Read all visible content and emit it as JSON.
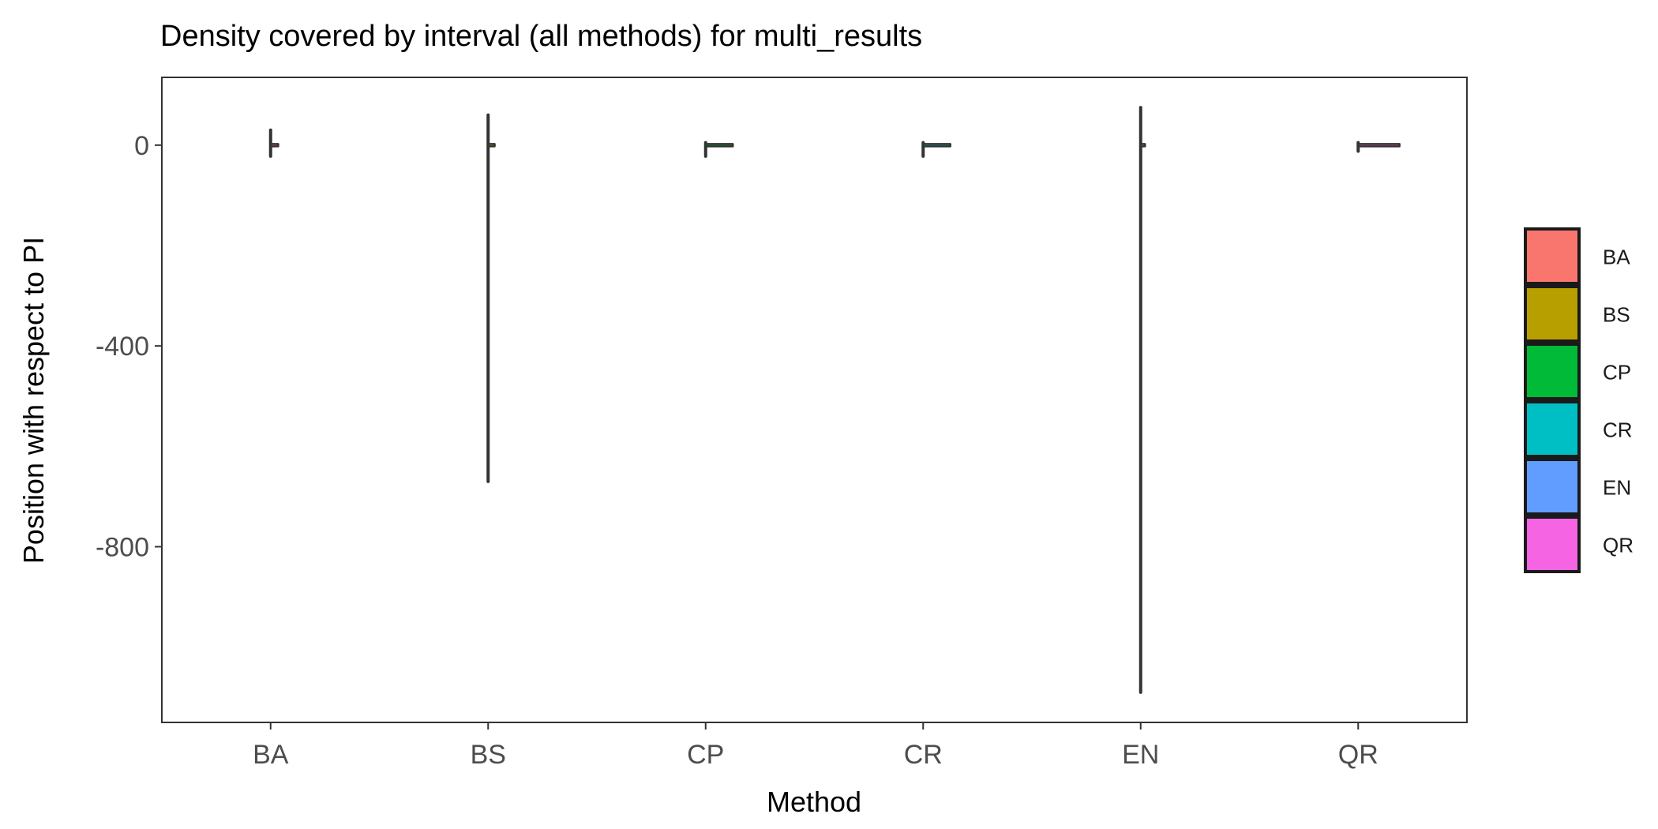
{
  "chart_data": {
    "type": "violin",
    "title": "Density covered by interval (all methods) for multi_results",
    "xlabel": "Method",
    "ylabel": "Position with respect to PI",
    "categories": [
      "BA",
      "BS",
      "CP",
      "CR",
      "EN",
      "QR"
    ],
    "ylim": [
      -1150,
      135
    ],
    "yticks": [
      0,
      -400,
      -800
    ],
    "grid": false,
    "legend_position": "right",
    "series": [
      {
        "name": "BA",
        "color": "#F8766D",
        "min": -22,
        "max": 30,
        "mode": 0,
        "density_width": 0.07
      },
      {
        "name": "BS",
        "color": "#B79F00",
        "min": -670,
        "max": 60,
        "mode": 0,
        "density_width": 0.06
      },
      {
        "name": "CP",
        "color": "#00BA38",
        "min": -22,
        "max": 5,
        "mode": 0,
        "density_width": 0.25
      },
      {
        "name": "CR",
        "color": "#00BFC4",
        "min": -22,
        "max": 5,
        "mode": 0,
        "density_width": 0.25
      },
      {
        "name": "EN",
        "color": "#619CFF",
        "min": -1090,
        "max": 75,
        "mode": 0,
        "density_width": 0.04
      },
      {
        "name": "QR",
        "color": "#F564E3",
        "min": -12,
        "max": 5,
        "mode": 0,
        "density_width": 0.38
      }
    ]
  },
  "colors": {
    "outline": "#333333",
    "panel_border": "#333333",
    "legend_key_border": "#1a1a1a"
  }
}
